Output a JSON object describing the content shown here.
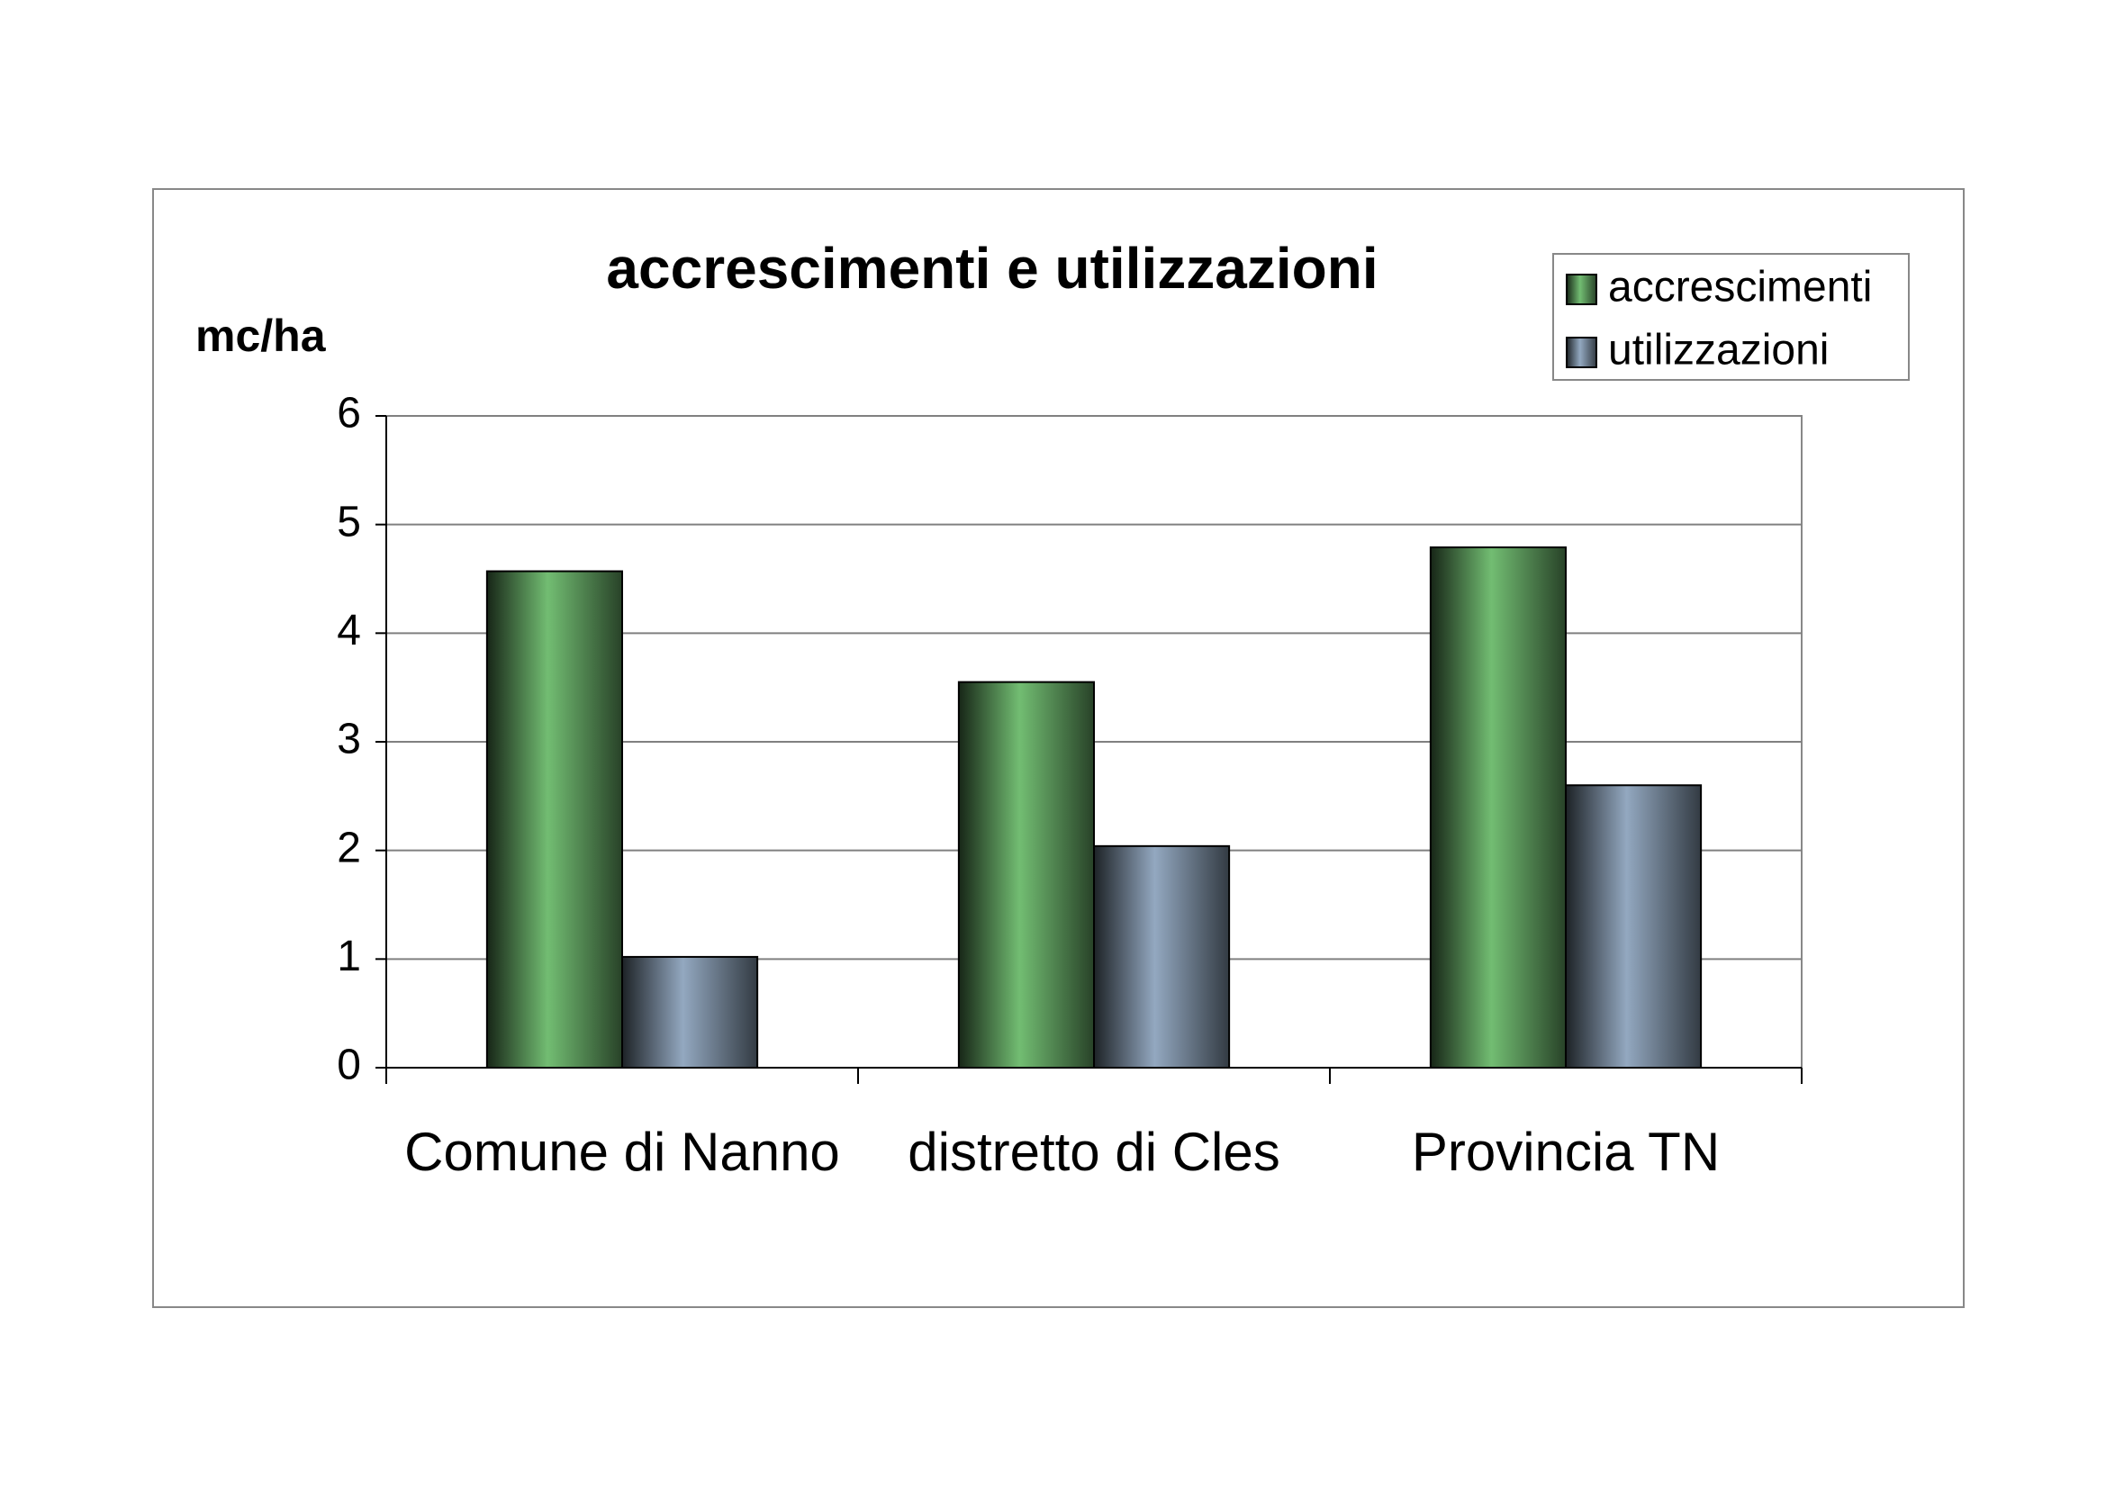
{
  "chart_data": {
    "type": "bar",
    "title": "accrescimenti e utilizzazioni",
    "y_label": "mc/ha",
    "categories": [
      "Comune di Nanno",
      "distretto di Cles",
      "Provincia TN"
    ],
    "series": [
      {
        "name": "accrescimenti",
        "color": "#72bd72",
        "values": [
          4.57,
          3.55,
          4.79
        ]
      },
      {
        "name": "utilizzazioni",
        "color": "#93a8c0",
        "values": [
          1.02,
          2.04,
          2.6
        ]
      }
    ],
    "ylim": [
      0,
      6
    ],
    "yticks": [
      0,
      1,
      2,
      3,
      4,
      5,
      6
    ],
    "grid": true,
    "legend": "top-right"
  }
}
